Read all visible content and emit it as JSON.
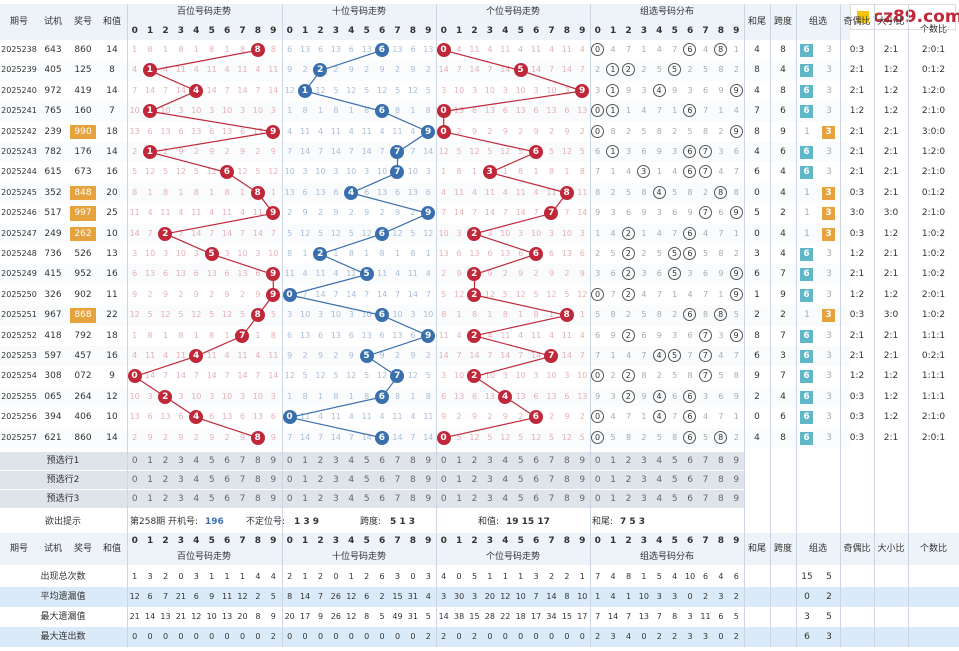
{
  "logo": {
    "text": "cz89.com"
  },
  "header": {
    "issue": "期号",
    "trial": "试机",
    "draw": "奖号",
    "sum": "和值",
    "hundreds_title": "百位号码走势",
    "tens_title": "十位号码走势",
    "units_title": "个位号码走势",
    "group_title": "组选号码分布",
    "tail": "和尾",
    "span": "跨度",
    "group": "组选",
    "odd_even": "奇偶比",
    "big_small": "大小比",
    "ratio012": "个数比"
  },
  "digits": [
    "0",
    "1",
    "2",
    "3",
    "4",
    "5",
    "6",
    "7",
    "8",
    "9"
  ],
  "rows": [
    {
      "issue": "2025238",
      "trial": "643",
      "draw": "860",
      "sum": "14",
      "h": 8,
      "t": 6,
      "u": 0,
      "grp": [
        0,
        6,
        8
      ],
      "tail": "4",
      "span": "8",
      "g6": "6",
      "g3": "",
      "oe": "0:3",
      "bs": "2:1",
      "r012": "2:0:1",
      "hl": false
    },
    {
      "issue": "2025239",
      "trial": "405",
      "draw": "125",
      "sum": "8",
      "h": 1,
      "t": 2,
      "u": 5,
      "grp": [
        1,
        2,
        5
      ],
      "tail": "8",
      "span": "4",
      "g6": "6",
      "g3": "",
      "oe": "2:1",
      "bs": "1:2",
      "r012": "0:1:2",
      "hl": false
    },
    {
      "issue": "2025240",
      "trial": "972",
      "draw": "419",
      "sum": "14",
      "h": 4,
      "t": 1,
      "u": 9,
      "grp": [
        1,
        4,
        9
      ],
      "tail": "4",
      "span": "8",
      "g6": "6",
      "g3": "",
      "oe": "2:1",
      "bs": "1:2",
      "r012": "1:2:0",
      "hl": false
    },
    {
      "issue": "2025241",
      "trial": "765",
      "draw": "160",
      "sum": "7",
      "h": 1,
      "t": 6,
      "u": 0,
      "grp": [
        0,
        1,
        6
      ],
      "tail": "7",
      "span": "6",
      "g6": "6",
      "g3": "",
      "oe": "1:2",
      "bs": "1:2",
      "r012": "2:1:0",
      "hl": false
    },
    {
      "issue": "2025242",
      "trial": "239",
      "draw": "990",
      "sum": "18",
      "h": 9,
      "t": 9,
      "u": 0,
      "grp": [
        0,
        9
      ],
      "tail": "8",
      "span": "9",
      "g6": "",
      "g3": "3",
      "oe": "2:1",
      "bs": "2:1",
      "r012": "3:0:0",
      "hl": true
    },
    {
      "issue": "2025243",
      "trial": "782",
      "draw": "176",
      "sum": "14",
      "h": 1,
      "t": 7,
      "u": 6,
      "grp": [
        1,
        6,
        7
      ],
      "tail": "4",
      "span": "6",
      "g6": "6",
      "g3": "",
      "oe": "2:1",
      "bs": "2:1",
      "r012": "1:2:0",
      "hl": false
    },
    {
      "issue": "2025244",
      "trial": "615",
      "draw": "673",
      "sum": "16",
      "h": 6,
      "t": 7,
      "u": 3,
      "grp": [
        3,
        6,
        7
      ],
      "tail": "6",
      "span": "4",
      "g6": "6",
      "g3": "",
      "oe": "2:1",
      "bs": "2:1",
      "r012": "2:1:0",
      "hl": false
    },
    {
      "issue": "2025245",
      "trial": "352",
      "draw": "848",
      "sum": "20",
      "h": 8,
      "t": 4,
      "u": 8,
      "grp": [
        4,
        8
      ],
      "tail": "0",
      "span": "4",
      "g6": "",
      "g3": "3",
      "oe": "0:3",
      "bs": "2:1",
      "r012": "0:1:2",
      "hl": true
    },
    {
      "issue": "2025246",
      "trial": "517",
      "draw": "997",
      "sum": "25",
      "h": 9,
      "t": 9,
      "u": 7,
      "grp": [
        7,
        9
      ],
      "tail": "5",
      "span": "2",
      "g6": "",
      "g3": "3",
      "oe": "3:0",
      "bs": "3:0",
      "r012": "2:1:0",
      "hl": true
    },
    {
      "issue": "2025247",
      "trial": "249",
      "draw": "262",
      "sum": "10",
      "h": 2,
      "t": 6,
      "u": 2,
      "grp": [
        2,
        6
      ],
      "tail": "0",
      "span": "4",
      "g6": "",
      "g3": "3",
      "oe": "0:3",
      "bs": "1:2",
      "r012": "1:0:2",
      "hl": true
    },
    {
      "issue": "2025248",
      "trial": "736",
      "draw": "526",
      "sum": "13",
      "h": 5,
      "t": 2,
      "u": 6,
      "grp": [
        2,
        5,
        6
      ],
      "tail": "3",
      "span": "4",
      "g6": "6",
      "g3": "",
      "oe": "1:2",
      "bs": "2:1",
      "r012": "1:0:2",
      "hl": false
    },
    {
      "issue": "2025249",
      "trial": "415",
      "draw": "952",
      "sum": "16",
      "h": 9,
      "t": 5,
      "u": 2,
      "grp": [
        2,
        5,
        9
      ],
      "tail": "6",
      "span": "7",
      "g6": "6",
      "g3": "",
      "oe": "2:1",
      "bs": "2:1",
      "r012": "1:0:2",
      "hl": false
    },
    {
      "issue": "2025250",
      "trial": "326",
      "draw": "902",
      "sum": "11",
      "h": 9,
      "t": 0,
      "u": 2,
      "grp": [
        0,
        2,
        9
      ],
      "tail": "1",
      "span": "9",
      "g6": "6",
      "g3": "",
      "oe": "1:2",
      "bs": "1:2",
      "r012": "2:0:1",
      "hl": false
    },
    {
      "issue": "2025251",
      "trial": "967",
      "draw": "868",
      "sum": "22",
      "h": 8,
      "t": 6,
      "u": 8,
      "grp": [
        6,
        8
      ],
      "tail": "2",
      "span": "2",
      "g6": "",
      "g3": "3",
      "oe": "0:3",
      "bs": "3:0",
      "r012": "1:0:2",
      "hl": true
    },
    {
      "issue": "2025252",
      "trial": "418",
      "draw": "792",
      "sum": "18",
      "h": 7,
      "t": 9,
      "u": 2,
      "grp": [
        2,
        7,
        9
      ],
      "tail": "8",
      "span": "7",
      "g6": "6",
      "g3": "",
      "oe": "2:1",
      "bs": "2:1",
      "r012": "1:1:1",
      "hl": false
    },
    {
      "issue": "2025253",
      "trial": "597",
      "draw": "457",
      "sum": "16",
      "h": 4,
      "t": 5,
      "u": 7,
      "grp": [
        4,
        5,
        7
      ],
      "tail": "6",
      "span": "3",
      "g6": "6",
      "g3": "",
      "oe": "2:1",
      "bs": "2:1",
      "r012": "0:2:1",
      "hl": false
    },
    {
      "issue": "2025254",
      "trial": "308",
      "draw": "072",
      "sum": "9",
      "h": 0,
      "t": 7,
      "u": 2,
      "grp": [
        0,
        2,
        7
      ],
      "tail": "9",
      "span": "7",
      "g6": "6",
      "g3": "",
      "oe": "1:2",
      "bs": "1:2",
      "r012": "1:1:1",
      "hl": false
    },
    {
      "issue": "2025255",
      "trial": "065",
      "draw": "264",
      "sum": "12",
      "h": 2,
      "t": 6,
      "u": 4,
      "grp": [
        2,
        4,
        6
      ],
      "tail": "2",
      "span": "4",
      "g6": "6",
      "g3": "",
      "oe": "0:3",
      "bs": "1:2",
      "r012": "1:1:1",
      "hl": false
    },
    {
      "issue": "2025256",
      "trial": "394",
      "draw": "406",
      "sum": "10",
      "h": 4,
      "t": 0,
      "u": 6,
      "grp": [
        0,
        4,
        6
      ],
      "tail": "0",
      "span": "6",
      "g6": "6",
      "g3": "",
      "oe": "0:3",
      "bs": "1:2",
      "r012": "2:1:0",
      "hl": false
    },
    {
      "issue": "2025257",
      "trial": "621",
      "draw": "860",
      "sum": "14",
      "h": 8,
      "t": 6,
      "u": 0,
      "grp": [
        0,
        6,
        8
      ],
      "tail": "4",
      "span": "8",
      "g6": "6",
      "g3": "",
      "oe": "0:3",
      "bs": "2:1",
      "r012": "2:0:1",
      "hl": false
    }
  ],
  "preview": [
    "预选行1",
    "预选行2",
    "预选行3"
  ],
  "hint": {
    "label": "欲出提示",
    "issue_text": "第258期 开机号:",
    "open": "196",
    "undet_label": "不定位号:",
    "undet": "1 3 9",
    "span_label": "跨度:",
    "span": "5 1 3",
    "sum_label": "和值:",
    "sum": "19 15 17",
    "tail_label": "和尾:",
    "tail": "7 5 3"
  },
  "stats": [
    {
      "label": "出现总次数",
      "h": [
        "1",
        "3",
        "2",
        "0",
        "3",
        "1",
        "1",
        "1",
        "4",
        "4"
      ],
      "t": [
        "2",
        "1",
        "2",
        "0",
        "1",
        "2",
        "6",
        "3",
        "0",
        "3"
      ],
      "u": [
        "4",
        "0",
        "5",
        "1",
        "1",
        "1",
        "3",
        "2",
        "2",
        "1"
      ],
      "g": [
        "7",
        "4",
        "8",
        "1",
        "5",
        "4",
        "10",
        "6",
        "4",
        "6"
      ],
      "g6": "15",
      "g3": "5"
    },
    {
      "label": "平均遗漏值",
      "h": [
        "12",
        "6",
        "7",
        "21",
        "6",
        "9",
        "11",
        "12",
        "2",
        "5"
      ],
      "t": [
        "8",
        "14",
        "7",
        "26",
        "12",
        "6",
        "2",
        "15",
        "31",
        "4"
      ],
      "u": [
        "3",
        "30",
        "3",
        "20",
        "12",
        "10",
        "7",
        "14",
        "8",
        "10"
      ],
      "g": [
        "1",
        "4",
        "1",
        "10",
        "3",
        "3",
        "0",
        "2",
        "3",
        "2"
      ],
      "g6": "0",
      "g3": "2"
    },
    {
      "label": "最大遗漏值",
      "h": [
        "21",
        "14",
        "13",
        "21",
        "12",
        "10",
        "13",
        "20",
        "8",
        "9"
      ],
      "t": [
        "20",
        "17",
        "9",
        "26",
        "12",
        "8",
        "5",
        "49",
        "31",
        "5"
      ],
      "u": [
        "14",
        "38",
        "15",
        "28",
        "22",
        "18",
        "17",
        "34",
        "15",
        "17"
      ],
      "g": [
        "7",
        "14",
        "7",
        "13",
        "7",
        "8",
        "3",
        "11",
        "6",
        "5"
      ],
      "g6": "3",
      "g3": "5"
    },
    {
      "label": "最大连出数",
      "h": [
        "0",
        "0",
        "0",
        "0",
        "0",
        "0",
        "0",
        "0",
        "0",
        "2"
      ],
      "t": [
        "0",
        "0",
        "0",
        "0",
        "0",
        "0",
        "0",
        "0",
        "0",
        "2"
      ],
      "u": [
        "2",
        "0",
        "2",
        "0",
        "0",
        "0",
        "0",
        "0",
        "0",
        "0"
      ],
      "g": [
        "2",
        "3",
        "4",
        "0",
        "2",
        "2",
        "3",
        "3",
        "0",
        "2"
      ],
      "g6": "6",
      "g3": "3"
    }
  ],
  "colors": {
    "red": "#c0283a",
    "blue": "#3a6fae",
    "orange": "#e6a23c",
    "teal": "#5fb7c8",
    "header": "#eef3fa"
  }
}
